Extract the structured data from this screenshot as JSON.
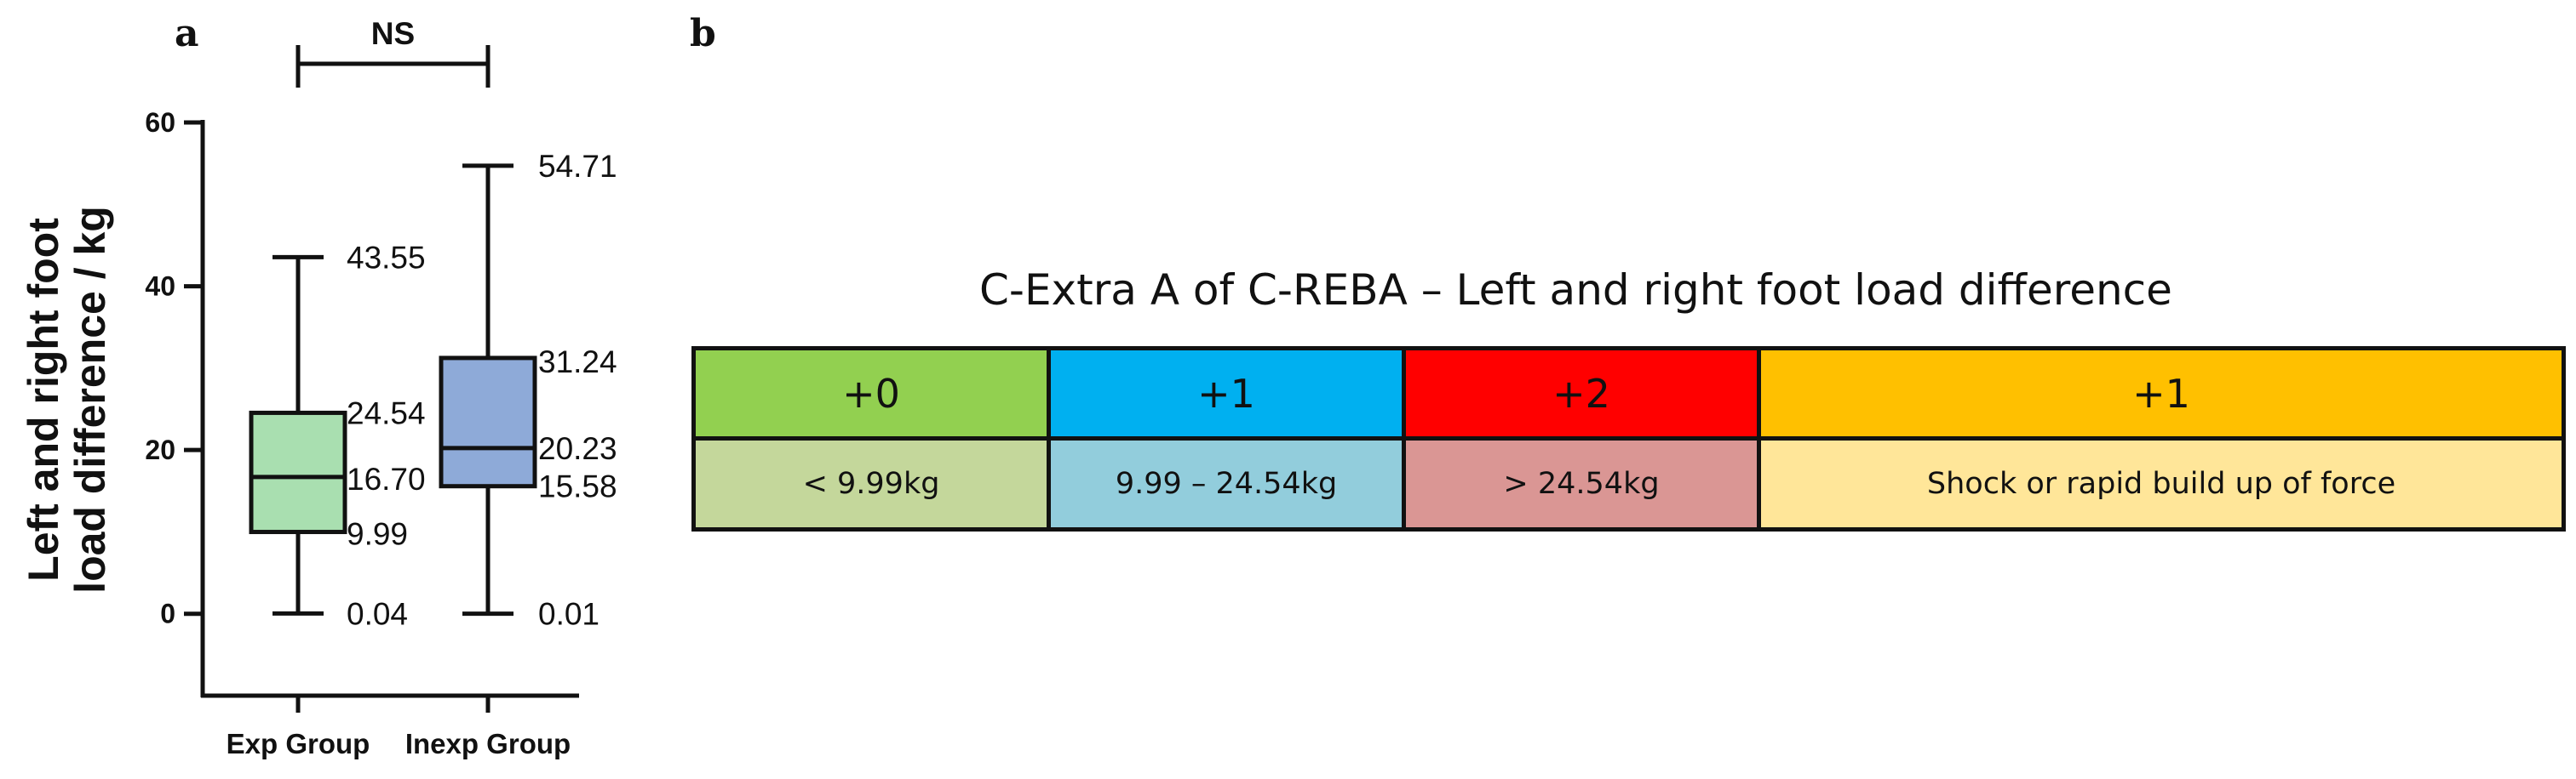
{
  "panel_a": {
    "letter": "a",
    "significance": "NS"
  },
  "panel_b": {
    "letter": "b",
    "title": "C-Extra A of C-REBA – Left and right foot load difference",
    "scores": [
      {
        "label": "+0",
        "color": "#92D050"
      },
      {
        "label": "+1",
        "color": "#00B0F0"
      },
      {
        "label": "+2",
        "color": "#FF0000"
      },
      {
        "label": "+1",
        "color": "#FFC000"
      }
    ],
    "criteria": [
      {
        "label": "< 9.99kg",
        "color": "#C4D79B"
      },
      {
        "label": "9.99 – 24.54kg",
        "color": "#92CDDC"
      },
      {
        "label": "> 24.54kg",
        "color": "#DA9694"
      },
      {
        "label": "Shock or rapid build up of force",
        "color": "#FFE699"
      }
    ]
  },
  "chart_data": {
    "type": "box",
    "ylabel": "Left and right foot load difference / kg",
    "ylim": [
      -10,
      60
    ],
    "yticks": [
      0,
      20,
      40,
      60
    ],
    "categories": [
      "Exp Group",
      "Inexp Group"
    ],
    "boxes": [
      {
        "category": "Exp Group",
        "min": 0.04,
        "q1": 9.99,
        "median": 16.7,
        "q3": 24.54,
        "max": 43.55,
        "labels": {
          "min": "0.04",
          "q1": "9.99",
          "median": "16.70",
          "q3": "24.54",
          "max": "43.55"
        },
        "fill": "#A9DFB0"
      },
      {
        "category": "Inexp Group",
        "min": 0.01,
        "q1": 15.58,
        "median": 20.23,
        "q3": 31.24,
        "max": 54.71,
        "labels": {
          "min": "0.01",
          "q1": "15.58",
          "median": "20.23",
          "q3": "31.24",
          "max": "54.71"
        },
        "fill": "#8EAAD8"
      }
    ],
    "comparison": {
      "between": [
        "Exp Group",
        "Inexp Group"
      ],
      "label": "NS"
    }
  }
}
